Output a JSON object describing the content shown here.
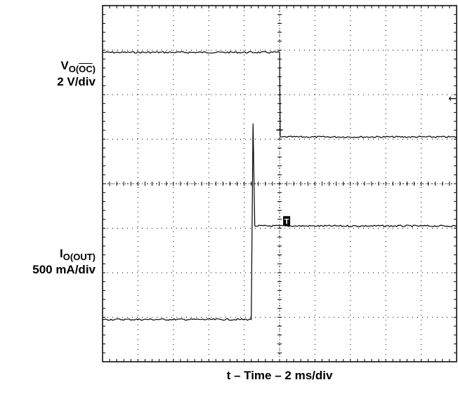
{
  "chart_data": {
    "type": "line",
    "title": "",
    "xlabel": "t – Time – 2 ms/div",
    "grid": true,
    "divisions": {
      "x": 10,
      "y": 8
    },
    "xlim": [
      0,
      10
    ],
    "ylim": [
      0,
      8
    ],
    "series": [
      {
        "name_main": "V",
        "name_sub_pre": "O(",
        "name_sub_bar": "OC",
        "name_sub_post": ")",
        "scale": "2 V/div",
        "points": [
          [
            0,
            6.95
          ],
          [
            5.0,
            6.95
          ],
          [
            5.02,
            5.05
          ],
          [
            5.05,
            5.05
          ],
          [
            10,
            5.05
          ]
        ]
      },
      {
        "name_main": "I",
        "name_sub": "O(OUT)",
        "scale": "500 mA/div",
        "points": [
          [
            0,
            0.95
          ],
          [
            4.2,
            0.95
          ],
          [
            4.25,
            5.35
          ],
          [
            4.3,
            3.05
          ],
          [
            10,
            3.05
          ]
        ]
      }
    ],
    "markers": {
      "trigger": "T",
      "level": "←"
    }
  }
}
